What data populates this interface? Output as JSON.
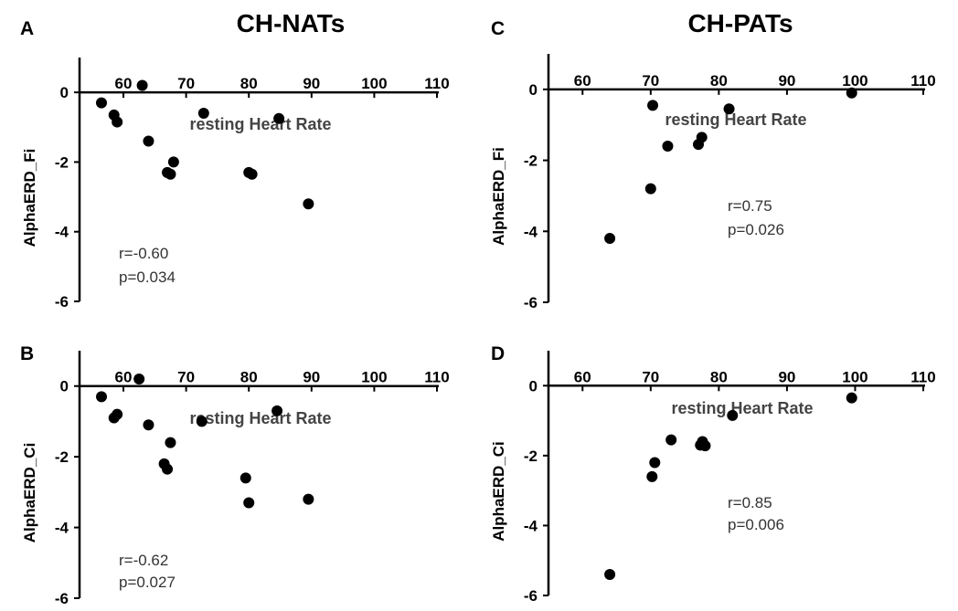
{
  "group_titles": {
    "left": "CH-NATs",
    "right": "CH-PATs"
  },
  "chart_data": [
    {
      "panel": "A",
      "type": "scatter",
      "xlabel": "resting Heart Rate",
      "ylabel": "AlphaERD_Fi",
      "xlim": [
        53,
        110
      ],
      "ylim": [
        -6,
        1
      ],
      "xticks": [
        60,
        70,
        80,
        90,
        100,
        110
      ],
      "yticks": [
        0,
        -2,
        -4,
        -6
      ],
      "annotations": [
        "r=-0.60",
        "p=0.034"
      ],
      "points": [
        {
          "x": 56.5,
          "y": -0.3
        },
        {
          "x": 58.5,
          "y": -0.65
        },
        {
          "x": 59,
          "y": -0.85
        },
        {
          "x": 63,
          "y": 0.2
        },
        {
          "x": 64,
          "y": -1.4
        },
        {
          "x": 67,
          "y": -2.3
        },
        {
          "x": 67.5,
          "y": -2.35
        },
        {
          "x": 68,
          "y": -2.0
        },
        {
          "x": 72.8,
          "y": -0.6
        },
        {
          "x": 80,
          "y": -2.3
        },
        {
          "x": 80.5,
          "y": -2.35
        },
        {
          "x": 84.8,
          "y": -0.75
        },
        {
          "x": 89.5,
          "y": -3.2
        }
      ]
    },
    {
      "panel": "B",
      "type": "scatter",
      "xlabel": "resting Heart Rate",
      "ylabel": "AlphaERD_Ci",
      "xlim": [
        53,
        110
      ],
      "ylim": [
        -6,
        1
      ],
      "xticks": [
        60,
        70,
        80,
        90,
        100,
        110
      ],
      "yticks": [
        0,
        -2,
        -4,
        -6
      ],
      "annotations": [
        "r=-0.62",
        "p=0.027"
      ],
      "points": [
        {
          "x": 56.5,
          "y": -0.3
        },
        {
          "x": 58.5,
          "y": -0.9
        },
        {
          "x": 59,
          "y": -0.8
        },
        {
          "x": 62.5,
          "y": 0.2
        },
        {
          "x": 64,
          "y": -1.1
        },
        {
          "x": 66.5,
          "y": -2.2
        },
        {
          "x": 67,
          "y": -2.35
        },
        {
          "x": 67.5,
          "y": -1.6
        },
        {
          "x": 72.5,
          "y": -1.0
        },
        {
          "x": 79.5,
          "y": -2.6
        },
        {
          "x": 80,
          "y": -3.3
        },
        {
          "x": 84.5,
          "y": -0.7
        },
        {
          "x": 89.5,
          "y": -3.2
        }
      ]
    },
    {
      "panel": "C",
      "type": "scatter",
      "xlabel": "resting Heart Rate",
      "ylabel": "AlphaERD_Fi",
      "xlim": [
        55,
        110
      ],
      "ylim": [
        -6,
        1
      ],
      "xticks": [
        60,
        70,
        80,
        90,
        100,
        110
      ],
      "yticks": [
        0,
        -2,
        -4,
        -6
      ],
      "annotations": [
        "r=0.75",
        "p=0.026"
      ],
      "points": [
        {
          "x": 64,
          "y": -4.2
        },
        {
          "x": 70,
          "y": -2.8
        },
        {
          "x": 70.3,
          "y": -0.45
        },
        {
          "x": 72.5,
          "y": -1.6
        },
        {
          "x": 77,
          "y": -1.55
        },
        {
          "x": 77.5,
          "y": -1.35
        },
        {
          "x": 81.5,
          "y": -0.55
        },
        {
          "x": 99.5,
          "y": -0.1
        }
      ]
    },
    {
      "panel": "D",
      "type": "scatter",
      "xlabel": "resting Heart Rate",
      "ylabel": "AlphaERD_Ci",
      "xlim": [
        55,
        110
      ],
      "ylim": [
        -6,
        1
      ],
      "xticks": [
        60,
        70,
        80,
        90,
        100,
        110
      ],
      "yticks": [
        0,
        -2,
        -4,
        -6
      ],
      "annotations": [
        "r=0.85",
        "p=0.006"
      ],
      "points": [
        {
          "x": 64,
          "y": -5.4
        },
        {
          "x": 70.2,
          "y": -2.6
        },
        {
          "x": 70.6,
          "y": -2.2
        },
        {
          "x": 73,
          "y": -1.55
        },
        {
          "x": 77.3,
          "y": -1.7
        },
        {
          "x": 77.6,
          "y": -1.6
        },
        {
          "x": 78,
          "y": -1.72
        },
        {
          "x": 82,
          "y": -0.85
        },
        {
          "x": 99.5,
          "y": -0.35
        }
      ]
    }
  ]
}
